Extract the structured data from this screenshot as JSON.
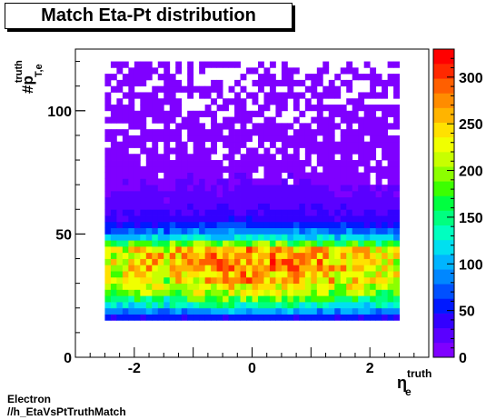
{
  "chart_data": {
    "type": "heatmap",
    "title": "Match Eta-Pt distribution",
    "xlabel": {
      "main": "η",
      "sup": "truth",
      "sub": "e"
    },
    "ylabel": {
      "main": "#p",
      "sup": "truth",
      "sub": "T,e"
    },
    "xlim": [
      -3,
      3
    ],
    "ylim": [
      0,
      125
    ],
    "x_ticks": [
      -2,
      0,
      2
    ],
    "y_ticks": [
      0,
      50,
      100
    ],
    "z_range": [
      0,
      330
    ],
    "z_ticks": [
      0,
      50,
      100,
      150,
      200,
      250,
      300
    ],
    "bins": {
      "eta_min": -2.5,
      "eta_max": 2.5,
      "eta_bins": 50,
      "pt_min": 15,
      "pt_max": 120,
      "pt_bins": 42
    },
    "pt_profile_description_values": [
      {
        "pt": 16,
        "counts": 50
      },
      {
        "pt": 20,
        "counts": 120
      },
      {
        "pt": 25,
        "counts": 200
      },
      {
        "pt": 30,
        "counts": 250
      },
      {
        "pt": 35,
        "counts": 270
      },
      {
        "pt": 40,
        "counts": 275
      },
      {
        "pt": 44,
        "counts": 260
      },
      {
        "pt": 48,
        "counts": 130
      },
      {
        "pt": 55,
        "counts": 45
      },
      {
        "pt": 65,
        "counts": 20
      },
      {
        "pt": 80,
        "counts": 10
      },
      {
        "pt": 100,
        "counts": 4
      },
      {
        "pt": 120,
        "counts": 2
      }
    ],
    "grid": false,
    "palette": [
      "#7f00ff",
      "#5a00ff",
      "#3300ff",
      "#0019ff",
      "#0050ff",
      "#0087ff",
      "#00b5ff",
      "#00e0f0",
      "#00ffc0",
      "#00ff80",
      "#00ff40",
      "#3cff00",
      "#8cff00",
      "#c8ff00",
      "#f0ff00",
      "#ffe100",
      "#ffb400",
      "#ff8c00",
      "#ff5f00",
      "#ff2800",
      "#ff0000"
    ]
  },
  "footer": {
    "line1": "Electron",
    "line2": "//h_EtaVsPtTruthMatch"
  }
}
